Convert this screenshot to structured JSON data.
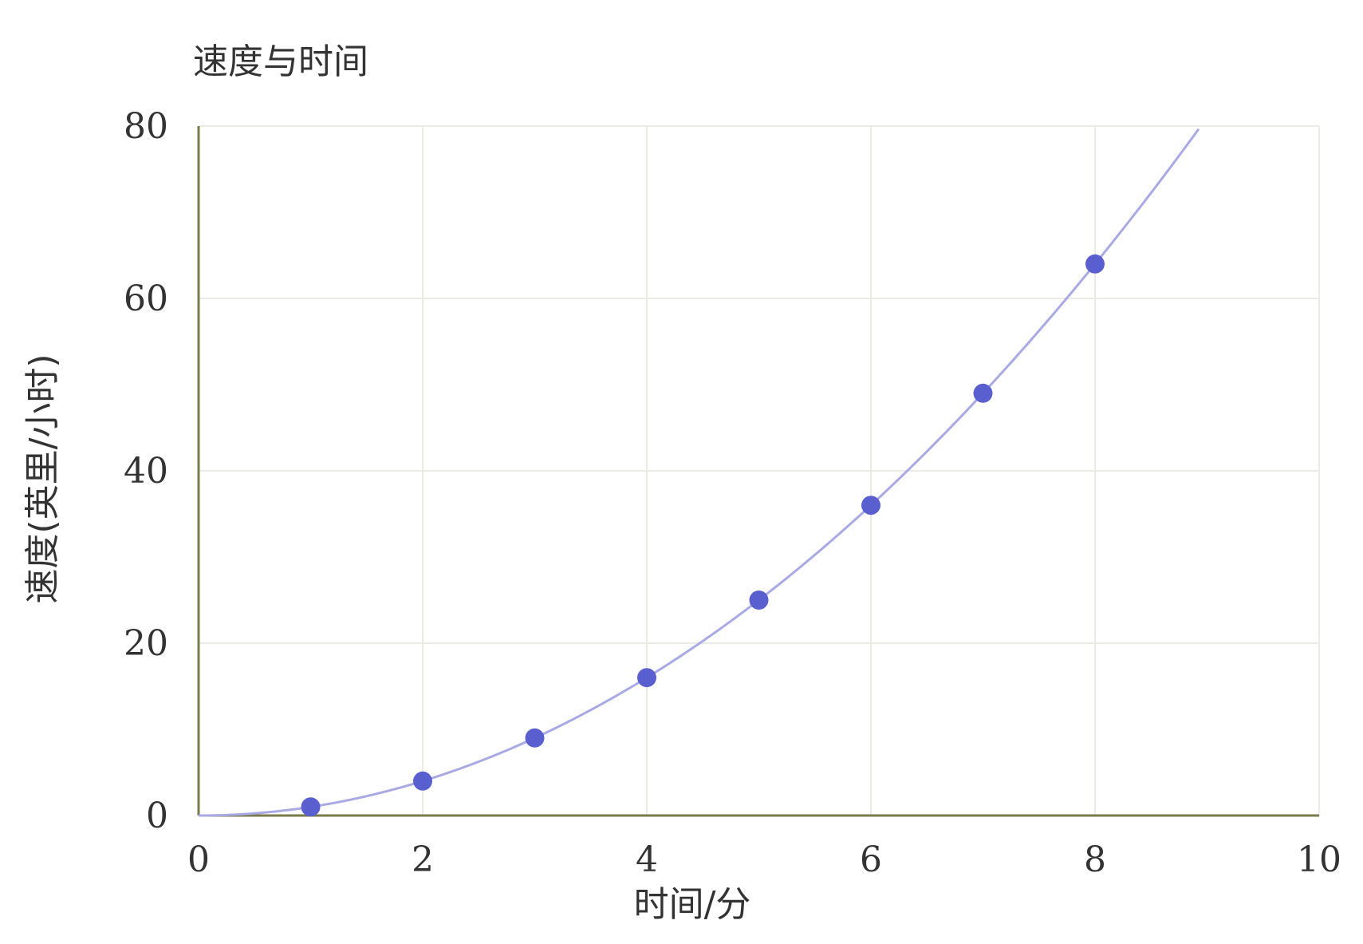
{
  "chart_data": {
    "type": "scatter",
    "title": "速度与时间",
    "xlabel": "时间/分",
    "ylabel": "速度(英里/小时)",
    "xlim": [
      0,
      10
    ],
    "ylim": [
      0,
      80
    ],
    "x_ticks": [
      0,
      2,
      4,
      6,
      8,
      10
    ],
    "y_ticks": [
      0,
      20,
      40,
      60,
      80
    ],
    "grid": true,
    "series": [
      {
        "x": [
          1,
          2,
          3,
          4,
          5,
          6,
          7,
          8
        ],
        "y": [
          1,
          4,
          9,
          16,
          25,
          36,
          49,
          64
        ]
      }
    ],
    "fit_curve": {
      "type": "quadratic",
      "formula_coefficient": 1
    },
    "colors": {
      "point": "#5a5fd0",
      "curve": "#a9a9e4",
      "axis": "#7a7a4a",
      "grid": "#ecece6"
    }
  }
}
